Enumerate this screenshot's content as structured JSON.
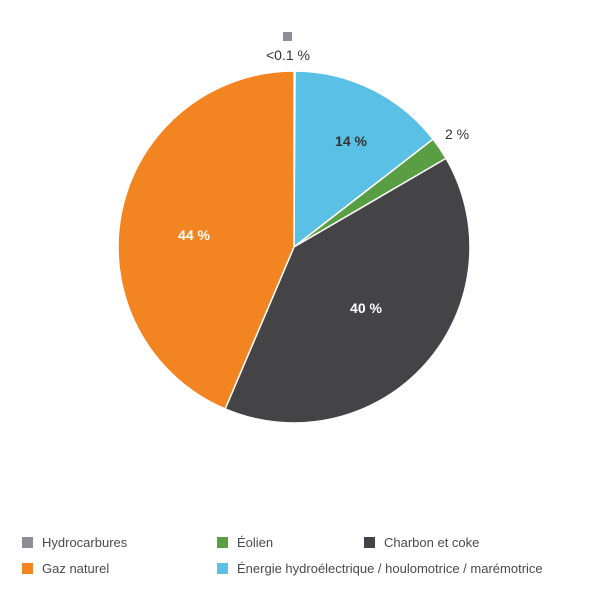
{
  "chart_data": {
    "type": "pie",
    "title": "",
    "slices": [
      {
        "name": "Hydrocarbures",
        "value": 0.1,
        "label": "<0.1 %",
        "color": "#8E8E96"
      },
      {
        "name": "Énergie hydroélectrique / houlomotrice / marémotrice",
        "value": 14.4,
        "label": "14 %",
        "color": "#5BC0E6"
      },
      {
        "name": "Éolien",
        "value": 2.1,
        "label": "2 %",
        "color": "#5A9E44"
      },
      {
        "name": "Charbon et coke",
        "value": 39.8,
        "label": "40 %",
        "color": "#444446"
      },
      {
        "name": "Gaz naturel",
        "value": 43.6,
        "label": "44 %",
        "color": "#F28522"
      }
    ],
    "legend_position": "bottom"
  },
  "labels": {
    "hydro_small": "<0.1 %",
    "hydroelec": "14 %",
    "eolien": "2 %",
    "charbon": "40 %",
    "gaz": "44 %"
  },
  "legend": {
    "items": [
      {
        "label": "Hydrocarbures",
        "color": "#8E8E96"
      },
      {
        "label": "Éolien",
        "color": "#5A9E44"
      },
      {
        "label": "Charbon et coke",
        "color": "#444446"
      },
      {
        "label": "Gaz naturel",
        "color": "#F28522"
      },
      {
        "label": "Énergie hydroélectrique / houlomotrice / marémotrice",
        "color": "#5BC0E6"
      }
    ]
  }
}
